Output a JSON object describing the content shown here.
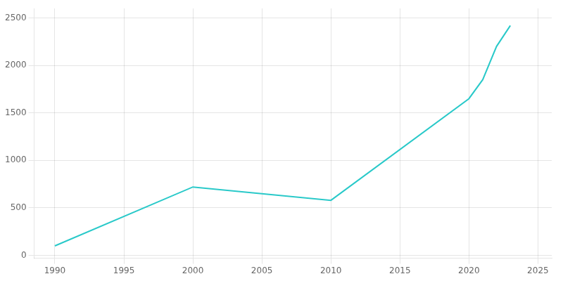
{
  "chart_data": {
    "type": "line",
    "x": [
      1990,
      2000,
      2005,
      2010,
      2020,
      2021,
      2022,
      2023
    ],
    "values": [
      100,
      720,
      650,
      580,
      1650,
      1850,
      2200,
      2420
    ],
    "color": "#29C9C9",
    "xlim": [
      1988.5,
      2026
    ],
    "xticks": [
      1990,
      1995,
      2000,
      2005,
      2010,
      2015,
      2020,
      2025
    ],
    "ylim": [
      -30,
      2600
    ],
    "yticks": [
      0,
      500,
      1000,
      1500,
      2000,
      2500
    ],
    "grid": true
  }
}
